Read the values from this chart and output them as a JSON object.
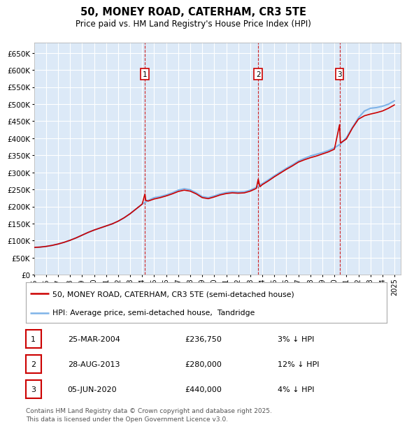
{
  "title": "50, MONEY ROAD, CATERHAM, CR3 5TE",
  "subtitle": "Price paid vs. HM Land Registry's House Price Index (HPI)",
  "yticks": [
    0,
    50000,
    100000,
    150000,
    200000,
    250000,
    300000,
    350000,
    400000,
    450000,
    500000,
    550000,
    600000,
    650000
  ],
  "ylim": [
    0,
    680000
  ],
  "plot_bg": "#dce9f7",
  "grid_color": "#ffffff",
  "hpi_color": "#7fb3e8",
  "price_color": "#cc0000",
  "transactions": [
    {
      "date_num": 2004.23,
      "price": 236750,
      "label": "1"
    },
    {
      "date_num": 2013.66,
      "price": 280000,
      "label": "2"
    },
    {
      "date_num": 2020.43,
      "price": 440000,
      "label": "3"
    }
  ],
  "transaction_table": [
    {
      "num": "1",
      "date": "25-MAR-2004",
      "price": "£236,750",
      "note": "3% ↓ HPI"
    },
    {
      "num": "2",
      "date": "28-AUG-2013",
      "price": "£280,000",
      "note": "12% ↓ HPI"
    },
    {
      "num": "3",
      "date": "05-JUN-2020",
      "price": "£440,000",
      "note": "4% ↓ HPI"
    }
  ],
  "legend_entries": [
    "50, MONEY ROAD, CATERHAM, CR3 5TE (semi-detached house)",
    "HPI: Average price, semi-detached house,  Tandridge"
  ],
  "footer": "Contains HM Land Registry data © Crown copyright and database right 2025.\nThis data is licensed under the Open Government Licence v3.0.",
  "hpi_x": [
    1995.0,
    1995.5,
    1996.0,
    1996.5,
    1997.0,
    1997.5,
    1998.0,
    1998.5,
    1999.0,
    1999.5,
    2000.0,
    2000.5,
    2001.0,
    2001.5,
    2002.0,
    2002.5,
    2003.0,
    2003.5,
    2004.0,
    2004.5,
    2005.0,
    2005.5,
    2006.0,
    2006.5,
    2007.0,
    2007.5,
    2008.0,
    2008.5,
    2009.0,
    2009.5,
    2010.0,
    2010.5,
    2011.0,
    2011.5,
    2012.0,
    2012.5,
    2013.0,
    2013.5,
    2014.0,
    2014.5,
    2015.0,
    2015.5,
    2016.0,
    2016.5,
    2017.0,
    2017.5,
    2018.0,
    2018.5,
    2019.0,
    2019.5,
    2020.0,
    2020.5,
    2021.0,
    2021.5,
    2022.0,
    2022.5,
    2023.0,
    2023.5,
    2024.0,
    2024.5,
    2025.0
  ],
  "hpi_y": [
    80000,
    81000,
    83000,
    86000,
    90000,
    95000,
    101000,
    108000,
    116000,
    124000,
    131000,
    137000,
    143000,
    149000,
    157000,
    167000,
    179000,
    193000,
    207000,
    218000,
    226000,
    229000,
    234000,
    240000,
    248000,
    252000,
    249000,
    240000,
    229000,
    226000,
    231000,
    237000,
    241000,
    243000,
    242000,
    243000,
    248000,
    256000,
    267000,
    278000,
    290000,
    301000,
    312000,
    322000,
    333000,
    341000,
    348000,
    353000,
    358000,
    364000,
    372000,
    383000,
    402000,
    432000,
    460000,
    480000,
    488000,
    490000,
    494000,
    500000,
    510000
  ],
  "price_x": [
    1995.0,
    1995.5,
    1996.0,
    1996.5,
    1997.0,
    1997.5,
    1998.0,
    1998.5,
    1999.0,
    1999.5,
    2000.0,
    2000.5,
    2001.0,
    2001.5,
    2002.0,
    2002.5,
    2003.0,
    2003.5,
    2004.0,
    2004.23,
    2004.3,
    2004.5,
    2005.0,
    2005.5,
    2006.0,
    2006.5,
    2007.0,
    2007.5,
    2008.0,
    2008.5,
    2009.0,
    2009.5,
    2010.0,
    2010.5,
    2011.0,
    2011.5,
    2012.0,
    2012.5,
    2013.0,
    2013.5,
    2013.66,
    2013.8,
    2014.0,
    2014.5,
    2015.0,
    2015.5,
    2016.0,
    2016.5,
    2017.0,
    2017.5,
    2018.0,
    2018.5,
    2019.0,
    2019.5,
    2020.0,
    2020.43,
    2020.5,
    2021.0,
    2021.5,
    2022.0,
    2022.5,
    2023.0,
    2023.5,
    2024.0,
    2024.5,
    2025.0
  ],
  "price_y": [
    80000,
    81000,
    83000,
    86000,
    90000,
    95000,
    101000,
    108000,
    116000,
    124000,
    131000,
    137000,
    143000,
    149000,
    157000,
    167000,
    179000,
    193000,
    207000,
    236750,
    218000,
    216000,
    222000,
    226000,
    231000,
    237000,
    244000,
    248000,
    245000,
    237000,
    226000,
    223000,
    228000,
    234000,
    238000,
    240000,
    239000,
    240000,
    245000,
    253000,
    280000,
    258000,
    264000,
    275000,
    287000,
    298000,
    309000,
    319000,
    330000,
    337000,
    343000,
    348000,
    354000,
    360000,
    368000,
    440000,
    386000,
    398000,
    430000,
    456000,
    466000,
    471000,
    475000,
    480000,
    488000,
    498000
  ],
  "xmin": 1995.0,
  "xmax": 2025.5
}
